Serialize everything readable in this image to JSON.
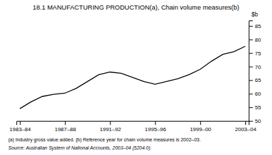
{
  "chart_data": {
    "type": "line",
    "title": "18.1  MANUFACTURING PRODUCTION(a), Chain volume measures(b)",
    "ylabel": "$b",
    "annotations": [
      "(a)  Industry gross value added.  (b)  Reference year for chain volume measures is 2002–03.",
      "Source:  Australian System of National Accounts, 2003–04 (5204.0)."
    ],
    "categories": [
      "1983–84",
      null,
      null,
      null,
      "1987–88",
      null,
      null,
      null,
      "1991–92",
      null,
      null,
      null,
      "1995–96",
      null,
      null,
      null,
      "1999–00",
      null,
      null,
      null,
      "2003–04"
    ],
    "values": [
      54.5,
      57.0,
      59.0,
      59.8,
      60.2,
      62.0,
      64.5,
      67.0,
      68.0,
      67.5,
      66.0,
      64.5,
      63.5,
      64.5,
      65.5,
      67.0,
      69.0,
      72.0,
      74.5,
      75.5,
      77.5
    ],
    "color": "#000000",
    "ylim": [
      50,
      87
    ],
    "yticks": [
      50,
      55,
      60,
      65,
      70,
      75,
      80,
      85
    ],
    "grid": false
  }
}
